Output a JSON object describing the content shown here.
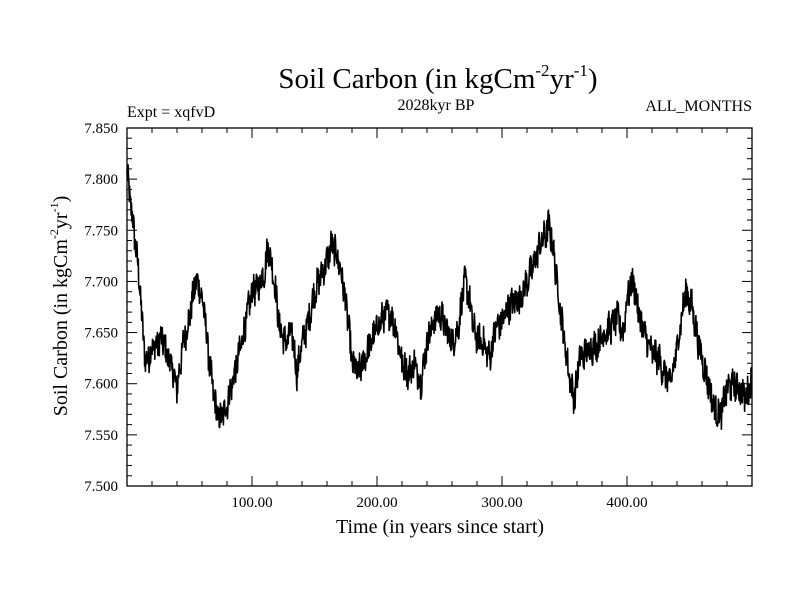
{
  "chart_data": {
    "type": "line",
    "title_main": "Soil Carbon (in kgCm",
    "title_sup1": "-2",
    "title_mid": "yr",
    "title_sup2": "-1",
    "title_end": ")",
    "subtitle": "2028kyr BP",
    "left_label": "Expt = xqfvD",
    "right_label": "ALL_MONTHS",
    "xlabel": "Time (in years since start)",
    "ylabel_main": "Soil Carbon (in kgCm",
    "ylabel_sup1": "-2",
    "ylabel_mid": "yr",
    "ylabel_sup2": "-1",
    "ylabel_end": ")",
    "xlim": [
      0,
      500
    ],
    "ylim": [
      7.5,
      7.85
    ],
    "x_ticks": [
      100,
      200,
      300,
      400
    ],
    "x_tick_labels": [
      "100.00",
      "200.00",
      "300.00",
      "400.00"
    ],
    "y_ticks": [
      7.5,
      7.55,
      7.6,
      7.65,
      7.7,
      7.75,
      7.8,
      7.85
    ],
    "y_tick_labels": [
      "7.500",
      "7.550",
      "7.600",
      "7.650",
      "7.700",
      "7.750",
      "7.800",
      "7.850"
    ],
    "series": [
      {
        "name": "Soil Carbon",
        "color": "#000000",
        "x": [
          0,
          3,
          6,
          10,
          12,
          15,
          20,
          25,
          28,
          30,
          35,
          40,
          45,
          50,
          55,
          58,
          62,
          65,
          68,
          72,
          75,
          80,
          85,
          90,
          95,
          100,
          105,
          110,
          113,
          118,
          122,
          127,
          132,
          136,
          140,
          145,
          150,
          155,
          160,
          163,
          167,
          172,
          177,
          180,
          185,
          190,
          195,
          200,
          205,
          210,
          215,
          220,
          225,
          230,
          235,
          240,
          245,
          250,
          255,
          260,
          265,
          270,
          273,
          277,
          280,
          285,
          290,
          295,
          300,
          305,
          310,
          315,
          320,
          325,
          330,
          335,
          337,
          340,
          345,
          350,
          355,
          358,
          362,
          367,
          372,
          377,
          382,
          387,
          392,
          397,
          400,
          405,
          410,
          415,
          420,
          425,
          430,
          435,
          440,
          443,
          447,
          452,
          457,
          462,
          467,
          470,
          475,
          480,
          485,
          490,
          495,
          500
        ],
        "y": [
          7.805,
          7.775,
          7.745,
          7.7,
          7.66,
          7.62,
          7.635,
          7.64,
          7.645,
          7.635,
          7.62,
          7.595,
          7.64,
          7.665,
          7.7,
          7.695,
          7.67,
          7.63,
          7.6,
          7.57,
          7.565,
          7.58,
          7.605,
          7.63,
          7.66,
          7.69,
          7.695,
          7.71,
          7.735,
          7.7,
          7.655,
          7.64,
          7.65,
          7.61,
          7.64,
          7.66,
          7.69,
          7.705,
          7.72,
          7.735,
          7.73,
          7.705,
          7.66,
          7.62,
          7.61,
          7.625,
          7.64,
          7.655,
          7.665,
          7.67,
          7.655,
          7.62,
          7.61,
          7.62,
          7.6,
          7.64,
          7.66,
          7.67,
          7.655,
          7.64,
          7.655,
          7.7,
          7.69,
          7.655,
          7.645,
          7.64,
          7.625,
          7.655,
          7.66,
          7.675,
          7.68,
          7.685,
          7.7,
          7.715,
          7.735,
          7.745,
          7.755,
          7.74,
          7.69,
          7.64,
          7.6,
          7.585,
          7.625,
          7.63,
          7.635,
          7.64,
          7.65,
          7.655,
          7.665,
          7.65,
          7.685,
          7.7,
          7.665,
          7.645,
          7.63,
          7.625,
          7.61,
          7.6,
          7.635,
          7.66,
          7.69,
          7.675,
          7.64,
          7.615,
          7.59,
          7.575,
          7.57,
          7.595,
          7.6,
          7.595,
          7.585,
          7.605
        ]
      }
    ]
  }
}
